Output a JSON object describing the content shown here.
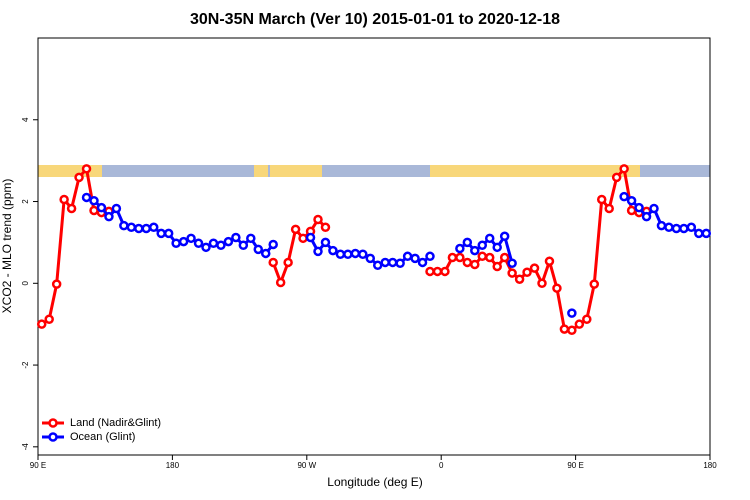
{
  "chart_data": {
    "type": "line",
    "title": "30N-35N March (Ver 10)   2015-01-01 to 2020-12-18",
    "x_label": "Longitude (deg E)",
    "y_label": "XCO2 - MLO trend (ppm)",
    "x": [
      92.5,
      97.5,
      102.5,
      107.5,
      112.5,
      117.5,
      122.5,
      127.5,
      132.5,
      137.5,
      142.5,
      147.5,
      152.5,
      157.5,
      162.5,
      167.5,
      172.5,
      177.5,
      182.5,
      187.5,
      192.5,
      197.5,
      202.5,
      207.5,
      212.5,
      217.5,
      222.5,
      227.5,
      232.5,
      237.5,
      242.5,
      247.5,
      252.5,
      257.5,
      262.5,
      267.5,
      272.5,
      277.5,
      282.5,
      287.5,
      292.5,
      297.5,
      302.5,
      307.5,
      312.5,
      317.5,
      322.5,
      327.5,
      332.5,
      337.5,
      342.5,
      347.5,
      352.5,
      357.5,
      362.5,
      367.5,
      372.5,
      377.5,
      382.5,
      387.5,
      392.5,
      397.5,
      402.5,
      407.5,
      412.5,
      417.5,
      422.5,
      427.5,
      432.5,
      437.5,
      442.5,
      447.5,
      452.5,
      457.5,
      462.5,
      467.5,
      472.5,
      477.5,
      482.5,
      487.5,
      492.5,
      497.5,
      502.5,
      507.5,
      512.5,
      517.5,
      522.5,
      527.5,
      532.5,
      537.5
    ],
    "series": [
      {
        "name": "Land (Nadir&Glint)",
        "color": "#ff0000",
        "values": [
          -1.0,
          -0.88,
          -0.02,
          2.05,
          1.83,
          2.59,
          2.8,
          1.78,
          1.73,
          1.76,
          null,
          null,
          null,
          null,
          null,
          null,
          null,
          null,
          null,
          null,
          null,
          null,
          null,
          null,
          null,
          null,
          null,
          null,
          null,
          null,
          null,
          0.51,
          0.02,
          0.51,
          1.32,
          1.1,
          1.27,
          1.56,
          1.37,
          null,
          null,
          null,
          null,
          null,
          null,
          null,
          null,
          null,
          null,
          null,
          null,
          null,
          0.29,
          0.29,
          0.29,
          0.63,
          0.63,
          0.51,
          0.46,
          0.66,
          0.63,
          0.41,
          0.63,
          0.25,
          0.1,
          0.27,
          0.37,
          0.0,
          0.54,
          -0.12,
          -1.12,
          -1.15,
          -1.0,
          -0.88,
          -0.02,
          2.05,
          1.83,
          2.59,
          2.8,
          1.78,
          1.73,
          1.76,
          null,
          null,
          null,
          null,
          null,
          null,
          null,
          null
        ]
      },
      {
        "name": "Ocean (Glint)",
        "color": "#0000ff",
        "values": [
          null,
          null,
          null,
          null,
          null,
          null,
          2.1,
          2.02,
          1.85,
          1.63,
          1.83,
          1.41,
          1.37,
          1.34,
          1.34,
          1.37,
          1.22,
          1.22,
          0.98,
          1.02,
          1.1,
          0.98,
          0.88,
          0.98,
          0.93,
          1.02,
          1.12,
          0.93,
          1.1,
          0.83,
          0.73,
          0.95,
          null,
          null,
          null,
          null,
          1.12,
          0.78,
          1.0,
          0.8,
          0.71,
          0.71,
          0.73,
          0.71,
          0.61,
          0.44,
          0.51,
          0.51,
          0.49,
          0.66,
          0.61,
          0.51,
          0.66,
          null,
          null,
          null,
          0.85,
          1.0,
          0.8,
          0.93,
          1.1,
          0.88,
          1.15,
          0.49,
          null,
          null,
          null,
          null,
          null,
          null,
          null,
          -0.73,
          null,
          null,
          null,
          null,
          null,
          null,
          2.12,
          2.02,
          1.85,
          1.63,
          1.83,
          1.41,
          1.37,
          1.34,
          1.34,
          1.37,
          1.22,
          1.22
        ]
      }
    ],
    "xlim": [
      90,
      540
    ],
    "xticks": [
      {
        "value": 90,
        "label": "90 E"
      },
      {
        "value": 180,
        "label": "180"
      },
      {
        "value": 270,
        "label": "90 W"
      },
      {
        "value": 360,
        "label": "0"
      },
      {
        "value": 450,
        "label": "90 E"
      },
      {
        "value": 540,
        "label": "180"
      }
    ],
    "ylim": [
      -4.2,
      6
    ],
    "yticks": [
      -4,
      -2,
      0,
      2,
      4
    ],
    "legend": "bottomleft"
  }
}
